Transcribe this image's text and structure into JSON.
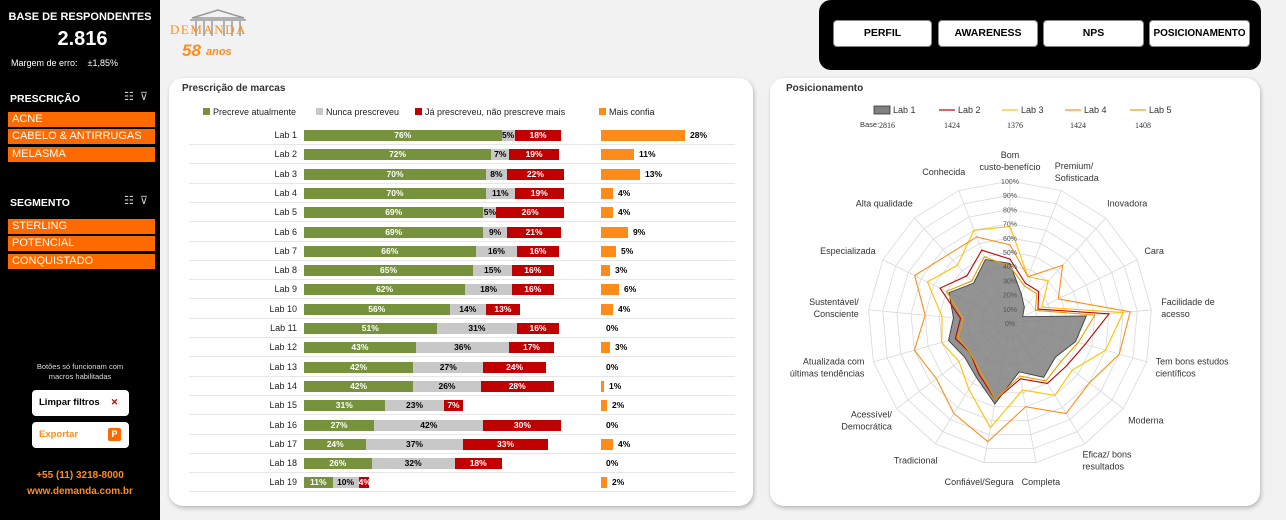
{
  "sidebar": {
    "title": "BASE DE RESPONDENTES",
    "value": "2.816",
    "margin_label": "Margem de erro:",
    "margin_value": "±1,85%",
    "prescricao": {
      "title": "PRESCRIÇÃO",
      "items": [
        "ACNE",
        "CABELO & ANTIRRUGAS",
        "MELASMA"
      ]
    },
    "segmento": {
      "title": "SEGMENTO",
      "items": [
        "STERLING",
        "POTENCIAL",
        "CONQUISTADO"
      ]
    },
    "note_line1": "Botões só funcionam com",
    "note_line2": "macros habilitadas",
    "clear_label": "Limpar filtros",
    "export_label": "Exportar",
    "phone": "+55 (11) 3218-8000",
    "site": "www.demanda.com.br"
  },
  "logo": {
    "brand": "DEMANDA",
    "years": "58",
    "years_word": "anos"
  },
  "nav": {
    "tabs": [
      "PERFIL",
      "AWARENESS",
      "NPS",
      "POSICIONAMENTO"
    ],
    "active": "POSICIONAMENTO"
  },
  "colors": {
    "green": "#76923c",
    "gray": "#c8c8c8",
    "red": "#c00000",
    "orange": "#ff8c1a"
  },
  "chart_data": [
    {
      "type": "bar",
      "title": "Prescrição de marcas",
      "categories": [
        "Lab 1",
        "Lab 2",
        "Lab 3",
        "Lab 4",
        "Lab 5",
        "Lab 6",
        "Lab 7",
        "Lab 8",
        "Lab 9",
        "Lab 10",
        "Lab 11",
        "Lab 12",
        "Lab 13",
        "Lab 14",
        "Lab 15",
        "Lab 16",
        "Lab 17",
        "Lab 18",
        "Lab 19"
      ],
      "series": [
        {
          "name": "Precreve atualmente",
          "values": [
            76,
            72,
            70,
            70,
            69,
            69,
            66,
            65,
            62,
            56,
            51,
            43,
            42,
            42,
            31,
            27,
            24,
            26,
            11
          ]
        },
        {
          "name": "Nunca prescreveu",
          "values": [
            5,
            7,
            8,
            11,
            5,
            9,
            16,
            15,
            18,
            14,
            31,
            36,
            27,
            26,
            23,
            42,
            37,
            32,
            10
          ]
        },
        {
          "name": "Já prescreveu, não prescreve mais",
          "values": [
            18,
            19,
            22,
            19,
            26,
            21,
            16,
            16,
            16,
            13,
            16,
            17,
            24,
            28,
            7,
            30,
            33,
            18,
            4
          ]
        },
        {
          "name": "Mais confia",
          "values": [
            28,
            11,
            13,
            4,
            4,
            9,
            5,
            3,
            6,
            4,
            0,
            3,
            0,
            1,
            2,
            0,
            4,
            0,
            2
          ]
        }
      ],
      "unit": "%"
    },
    {
      "type": "radar",
      "title": "Posicionamento",
      "base_label": "Base:",
      "axes": [
        "Bom custo-benefício",
        "Premium/ Sofisticada",
        "Inovadora",
        "Cara",
        "Facilidade de acesso",
        "Tem bons estudos científicos",
        "Moderna",
        "Eficaz/ bons resultados",
        "Completa",
        "Confiável/Segura",
        "Tradicional",
        "Acessível/ Democrática",
        "Atualizada com últimas tendências",
        "Sustentável/ Consciente",
        "Especializada",
        "Alta qualidade",
        "Conhecida"
      ],
      "axes_lines": [
        [
          "Bom",
          "custo-benefício"
        ],
        [
          "Premium/",
          "Sofisticada"
        ],
        [
          "Inovadora"
        ],
        [
          "Cara"
        ],
        [
          "Facilidade de",
          "acesso"
        ],
        [
          "Tem bons estudos",
          "científicos"
        ],
        [
          "Moderna"
        ],
        [
          "Eficaz/ bons",
          "resultados"
        ],
        [
          "Completa"
        ],
        [
          "Confiável/Segura"
        ],
        [
          "Tradicional"
        ],
        [
          "Acessível/",
          "Democrática"
        ],
        [
          "Atualizada com",
          "últimas tendências"
        ],
        [
          "Sustentável/",
          "Consciente"
        ],
        [
          "Especializada"
        ],
        [
          "Alta qualidade"
        ],
        [
          "Conhecida"
        ]
      ],
      "rlim": [
        0,
        100
      ],
      "ticks": [
        "0%",
        "10%",
        "20%",
        "30%",
        "40%",
        "50%",
        "60%",
        "70%",
        "80%",
        "90%",
        "100%"
      ],
      "series": [
        {
          "name": "Lab 1",
          "base": "2816",
          "color": "#808080",
          "fill": true,
          "values": [
            42,
            22,
            15,
            10,
            54,
            48,
            40,
            45,
            35,
            58,
            45,
            40,
            45,
            40,
            48,
            38,
            48
          ]
        },
        {
          "name": "Lab 2",
          "base": "1424",
          "color": "#c00000",
          "fill": false,
          "values": [
            45,
            30,
            30,
            22,
            70,
            55,
            50,
            50,
            40,
            55,
            42,
            35,
            40,
            35,
            55,
            45,
            55
          ]
        },
        {
          "name": "Lab 3",
          "base": "1376",
          "color": "#ffc000",
          "fill": false,
          "values": [
            68,
            35,
            40,
            25,
            80,
            70,
            55,
            60,
            48,
            75,
            55,
            45,
            50,
            48,
            65,
            55,
            70
          ]
        },
        {
          "name": "Lab 4",
          "base": "1424",
          "color": "#ff8c1a",
          "fill": false,
          "values": [
            55,
            35,
            55,
            38,
            85,
            80,
            70,
            75,
            60,
            85,
            75,
            65,
            70,
            60,
            75,
            65,
            65
          ]
        },
        {
          "name": "Lab 5",
          "base": "1408",
          "color": "#e8a000",
          "fill": false,
          "values": [
            40,
            28,
            28,
            20,
            60,
            50,
            45,
            48,
            38,
            55,
            40,
            35,
            38,
            33,
            50,
            40,
            50
          ]
        }
      ]
    }
  ]
}
